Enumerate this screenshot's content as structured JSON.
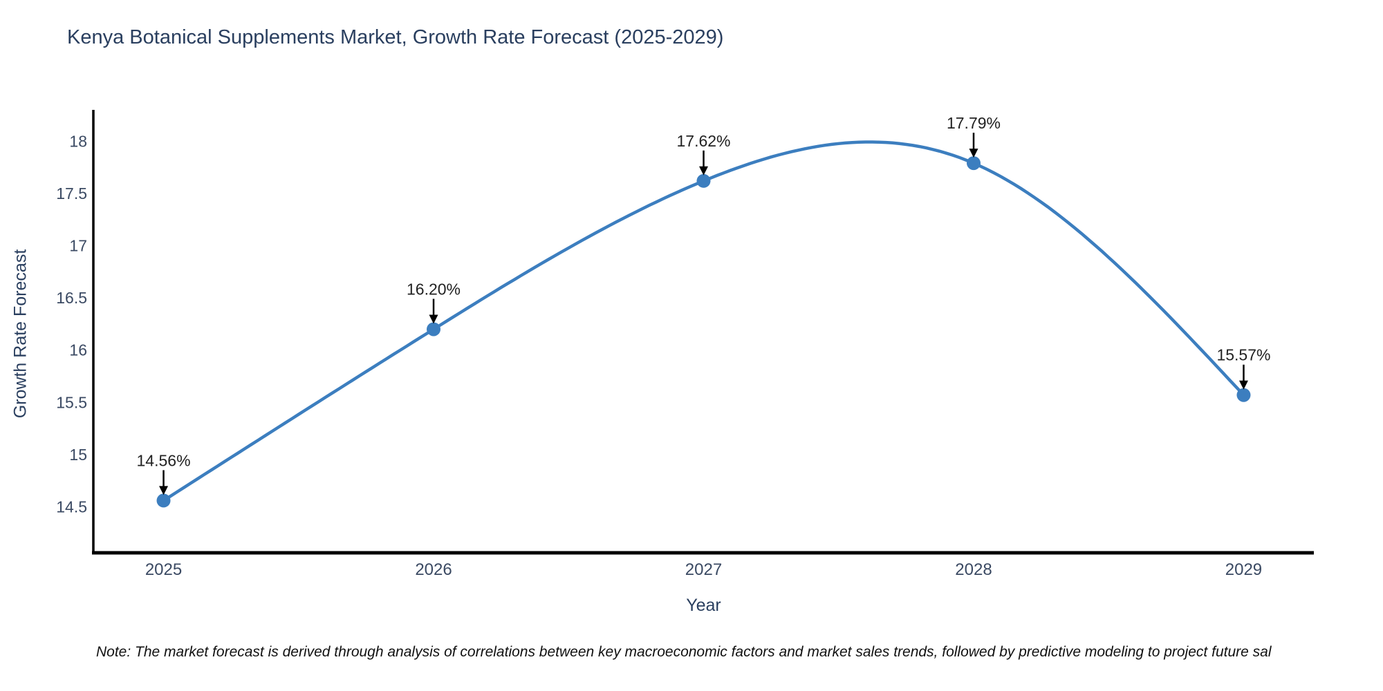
{
  "chart_data": {
    "type": "line",
    "title": "Kenya Botanical Supplements Market, Growth Rate Forecast (2025-2029)",
    "xlabel": "Year",
    "ylabel": "Growth Rate Forecast",
    "categories": [
      2025,
      2026,
      2027,
      2028,
      2029
    ],
    "values": [
      14.56,
      16.2,
      17.62,
      17.79,
      15.57
    ],
    "point_labels": [
      "14.56%",
      "16.20%",
      "17.62%",
      "17.79%",
      "15.57%"
    ],
    "yticks": [
      14.5,
      15,
      15.5,
      16,
      16.5,
      17,
      17.5,
      18
    ],
    "ylim": [
      14.06,
      18.3
    ],
    "xlim": [
      2024.74,
      2029.26
    ],
    "grid": false,
    "legend": "none",
    "line_style": "smooth-spline",
    "line_color": "#3c7ebf",
    "marker_color": "#3c7ebf",
    "axis_color": "#000000",
    "arrow_color": "#000000",
    "title_color": "#2a3f5f",
    "note": "Note: The market forecast is derived through analysis of correlations between key macroeconomic factors and market sales trends, followed by predictive modeling to project future sal"
  }
}
